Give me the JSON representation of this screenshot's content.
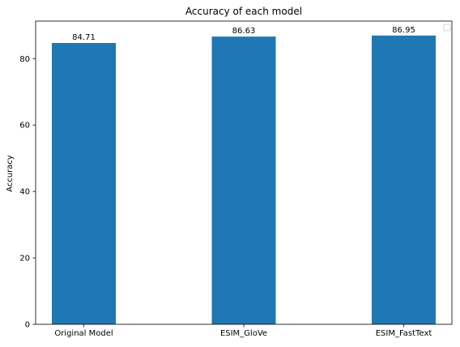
{
  "chart_data": {
    "type": "bar",
    "title": "Accuracy of each model",
    "xlabel": "",
    "ylabel": "Accuracy",
    "categories": [
      "Original Model",
      "ESIM_GloVe",
      "ESIM_FastText"
    ],
    "values": [
      84.71,
      86.63,
      86.95
    ],
    "data_labels": [
      "84.71",
      "86.63",
      "86.95"
    ],
    "ylim": [
      0,
      91.3
    ],
    "yticks": [
      0,
      20,
      40,
      60,
      80
    ],
    "ytick_labels": [
      "0",
      "20",
      "40",
      "60",
      "80"
    ],
    "bar_color": "#1f77b4",
    "grid": false,
    "legend": {
      "placement": "top-right",
      "entries": []
    }
  }
}
